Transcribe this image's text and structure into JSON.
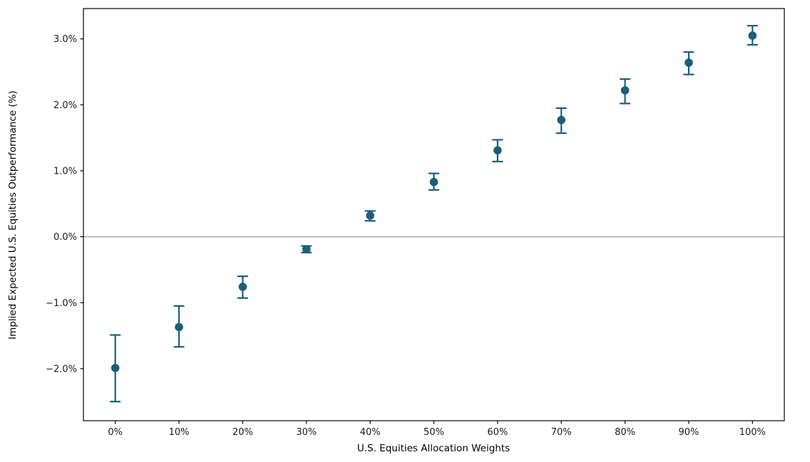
{
  "chart_data": {
    "type": "scatter",
    "subtype": "errorbar",
    "title": "",
    "xlabel": "U.S. Equities Allocation Weights",
    "ylabel": "Implied Expected U.S. Equities Outperformance (%)",
    "categories": [
      "0%",
      "10%",
      "20%",
      "30%",
      "40%",
      "50%",
      "60%",
      "70%",
      "80%",
      "90%",
      "100%"
    ],
    "x_values_pct": [
      0,
      10,
      20,
      30,
      40,
      50,
      60,
      70,
      80,
      90,
      100
    ],
    "values": [
      -1.99,
      -1.37,
      -0.76,
      -0.19,
      0.32,
      0.83,
      1.31,
      1.77,
      2.22,
      2.64,
      3.05
    ],
    "err_low": [
      -2.5,
      -1.67,
      -0.93,
      -0.24,
      0.24,
      0.71,
      1.14,
      1.57,
      2.02,
      2.46,
      2.91
    ],
    "err_high": [
      -1.49,
      -1.05,
      -0.6,
      -0.14,
      0.39,
      0.96,
      1.47,
      1.95,
      2.39,
      2.8,
      3.2
    ],
    "yticks": [
      -2,
      -1,
      0,
      1,
      2,
      3
    ],
    "ytick_labels": [
      "−2.0%",
      "−1.0%",
      "0.0%",
      "1.0%",
      "2.0%",
      "3.0%"
    ],
    "ylim": [
      -2.79,
      3.46
    ],
    "xlim_categories": [
      -0.5,
      10.5
    ],
    "zero_line": true,
    "grid": false,
    "legend": false,
    "colors": {
      "point": "#1a5f7a",
      "errorbar": "#1a5f7a",
      "zero_line": "#a9a9a9",
      "spine": "#000000",
      "text": "#1a1a1a"
    }
  }
}
